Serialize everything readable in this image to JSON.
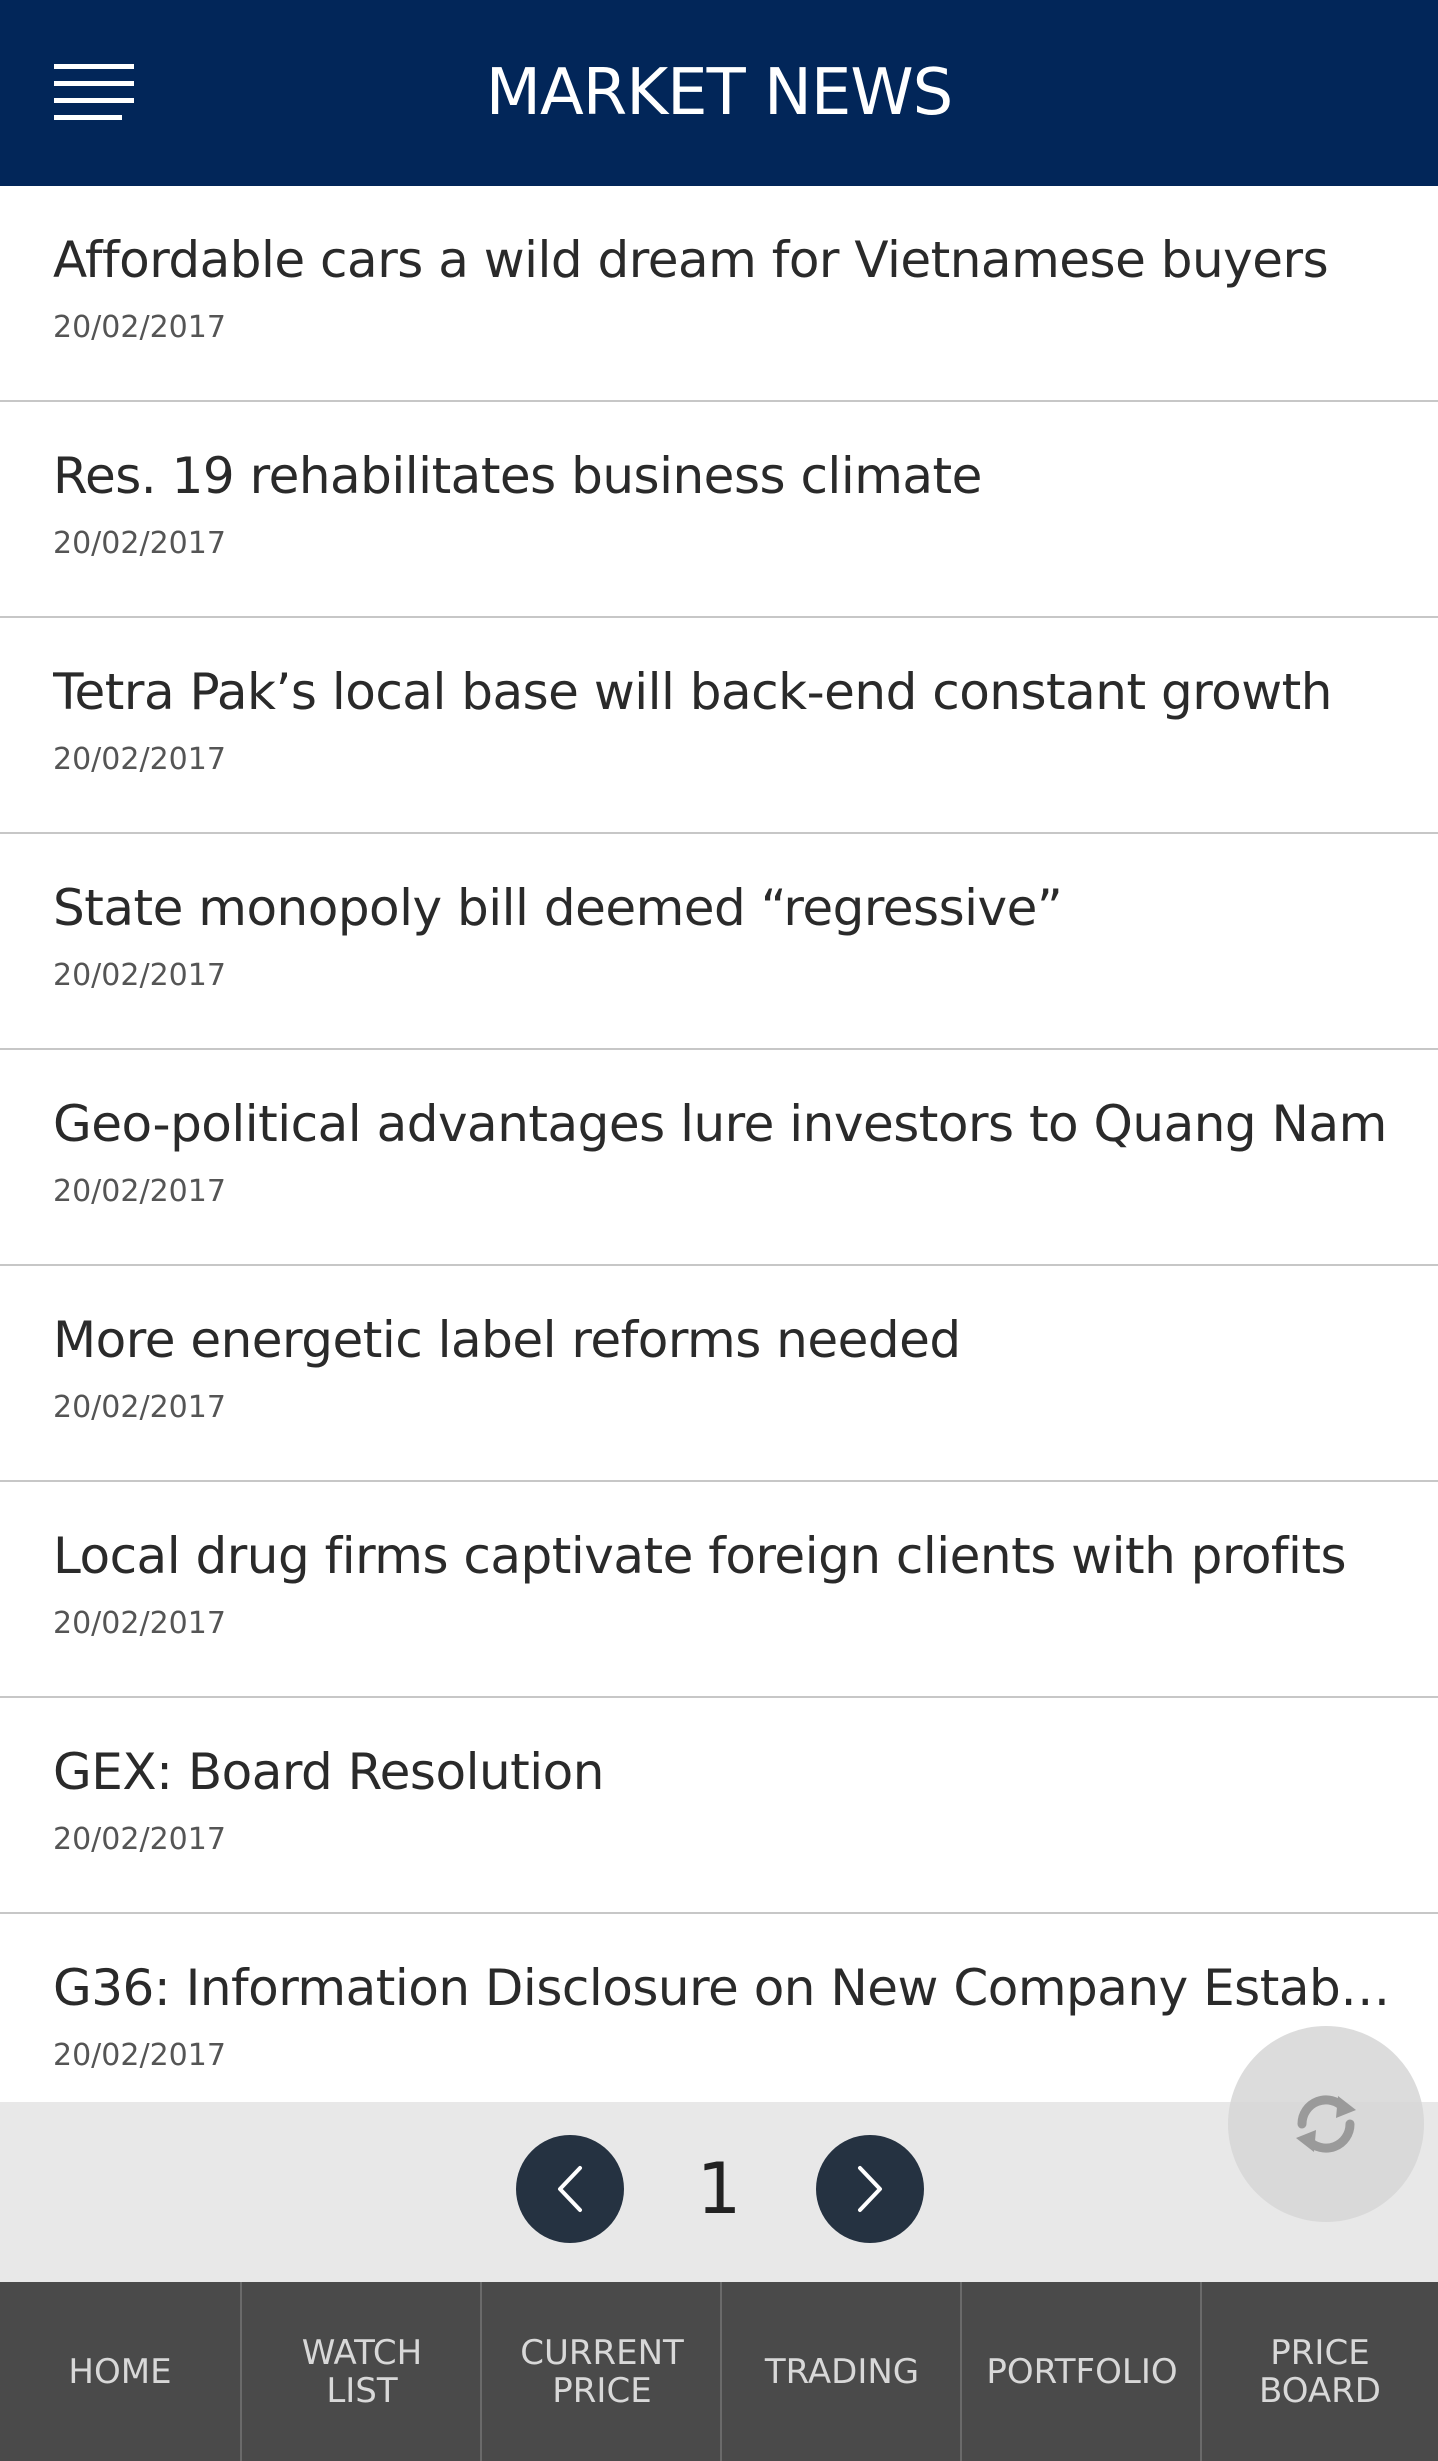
{
  "header": {
    "title": "MARKET NEWS",
    "menu_icon": "hamburger-menu-icon",
    "background": "#022659"
  },
  "news": [
    {
      "title": "Affordable cars a wild dream for Vietnamese buyers",
      "date": "20/02/2017"
    },
    {
      "title": "Res. 19 rehabilitates business climate",
      "date": "20/02/2017"
    },
    {
      "title": "Tetra Pak’s local base will back-end constant growth",
      "date": "20/02/2017"
    },
    {
      "title": "State monopoly bill deemed “regressive”",
      "date": "20/02/2017"
    },
    {
      "title": "Geo-political advantages lure investors to Quang Nam",
      "date": "20/02/2017"
    },
    {
      "title": "More energetic label reforms needed",
      "date": "20/02/2017"
    },
    {
      "title": "Local drug firms captivate foreign clients with profits",
      "date": "20/02/2017"
    },
    {
      "title": "GEX: Board Resolution",
      "date": "20/02/2017"
    },
    {
      "title": "G36: Information Disclosure on New Company Establ...",
      "date": "20/02/2017"
    }
  ],
  "pagination": {
    "current_page": "1",
    "prev_icon": "chevron-left-icon",
    "next_icon": "chevron-right-icon"
  },
  "refresh": {
    "icon": "refresh-icon"
  },
  "bottom_nav": {
    "items": [
      {
        "label": "HOME"
      },
      {
        "label": "WATCH\nLIST"
      },
      {
        "label": "CURRENT\nPRICE"
      },
      {
        "label": "TRADING"
      },
      {
        "label": "PORTFOLIO"
      },
      {
        "label": "PRICE\nBOARD"
      }
    ],
    "background": "#4a4a4a"
  }
}
